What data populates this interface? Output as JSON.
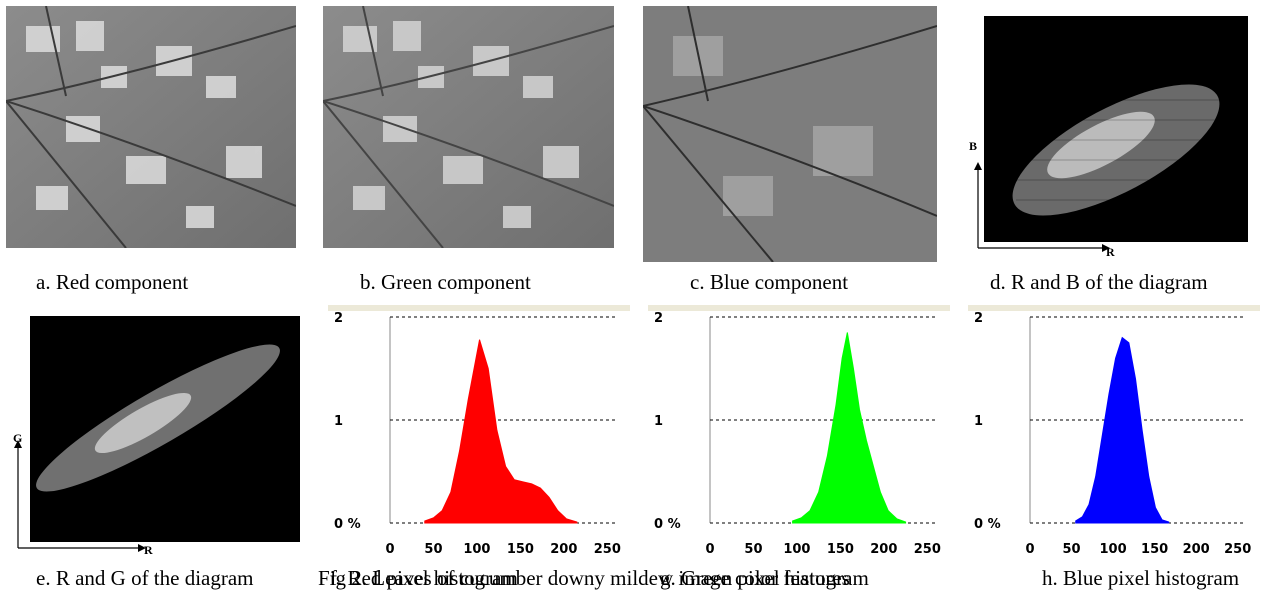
{
  "figure": {
    "captions": {
      "a": "a. Red component",
      "b": "b. Green component",
      "c": "c. Blue component",
      "d": "d. R and B of the diagram",
      "e": "e. R and G of the diagram",
      "f": "f. Red pixel histogram",
      "g": "g. Green pixel histogram",
      "h": "h. Blue pixel histogram"
    },
    "fig_title": "Fig 2. Leaves of cucumber downy mildew image color features",
    "scatter_axes": {
      "r": "R",
      "b": "B",
      "g": "G"
    },
    "colors": {
      "red": "#ff0000",
      "green": "#00ff00",
      "blue": "#0000ff"
    }
  },
  "chart_data": [
    {
      "type": "area",
      "series": [
        {
          "name": "",
          "color": "#ff0000",
          "values": [
            0.02,
            0.05,
            0.12,
            0.3,
            0.7,
            1.2,
            1.78,
            1.5,
            0.9,
            0.55,
            0.42,
            0.4,
            0.38,
            0.34,
            0.25,
            0.12,
            0.04,
            0.01
          ]
        }
      ],
      "x": [
        40,
        50,
        60,
        70,
        80,
        90,
        103,
        113,
        123,
        133,
        143,
        153,
        163,
        173,
        183,
        193,
        203,
        215
      ],
      "xlim": [
        0,
        260
      ],
      "ylim": [
        0,
        2
      ],
      "xticks": [
        "0",
        "50",
        "100",
        "150",
        "200",
        "250"
      ],
      "yticks": [
        "0 %",
        "1",
        "2"
      ],
      "hline": 1
    },
    {
      "type": "area",
      "series": [
        {
          "name": "",
          "color": "#00ff00",
          "values": [
            0.02,
            0.05,
            0.12,
            0.3,
            0.65,
            1.15,
            1.6,
            1.85,
            1.5,
            1.1,
            0.8,
            0.55,
            0.3,
            0.12,
            0.04,
            0.01
          ]
        }
      ],
      "x": [
        95,
        105,
        115,
        125,
        135,
        145,
        152,
        158,
        165,
        172,
        180,
        188,
        196,
        205,
        215,
        225
      ],
      "xlim": [
        0,
        260
      ],
      "ylim": [
        0,
        2
      ],
      "xticks": [
        "0",
        "50",
        "100",
        "150",
        "200",
        "250"
      ],
      "yticks": [
        "0 %",
        "1",
        "2"
      ],
      "hline": 1
    },
    {
      "type": "area",
      "series": [
        {
          "name": "",
          "color": "#0000ff",
          "values": [
            0.02,
            0.06,
            0.18,
            0.45,
            0.85,
            1.25,
            1.6,
            1.8,
            1.75,
            1.4,
            0.9,
            0.45,
            0.15,
            0.03,
            0.01
          ]
        }
      ],
      "x": [
        55,
        63,
        71,
        79,
        87,
        95,
        103,
        111,
        119,
        127,
        135,
        143,
        151,
        159,
        167
      ],
      "xlim": [
        0,
        260
      ],
      "ylim": [
        0,
        2
      ],
      "xticks": [
        "0",
        "50",
        "100",
        "150",
        "200",
        "250"
      ],
      "yticks": [
        "0 %",
        "1",
        "2"
      ],
      "hline": 1
    }
  ]
}
